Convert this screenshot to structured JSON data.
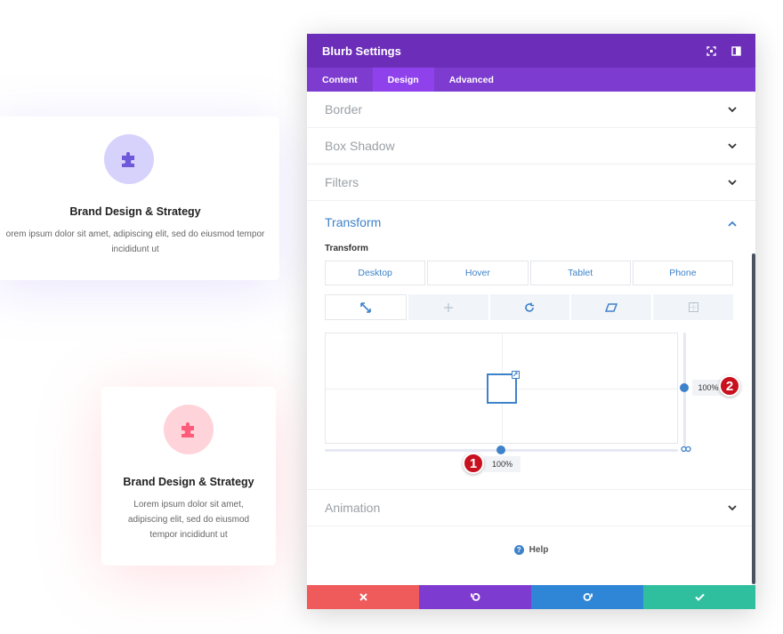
{
  "cards": [
    {
      "title": "Brand Design & Strategy",
      "text": "orem ipsum dolor sit amet, adipiscing elit, sed do eiusmod tempor incididunt ut",
      "icon": "puzzle-icon",
      "accent": "#6f58d9"
    },
    {
      "title": "Brand Design & Strategy",
      "text": "Lorem ipsum dolor sit amet, adipiscing elit, sed do eiusmod tempor incididunt ut",
      "icon": "puzzle-icon",
      "accent": "#ff5c7a"
    }
  ],
  "modal": {
    "title": "Blurb Settings",
    "header_icons": [
      "expand-icon",
      "sidebar-toggle-icon"
    ],
    "tabs": [
      {
        "label": "Content",
        "active": false
      },
      {
        "label": "Design",
        "active": true
      },
      {
        "label": "Advanced",
        "active": false
      }
    ],
    "sections": [
      {
        "label": "Border"
      },
      {
        "label": "Box Shadow"
      },
      {
        "label": "Filters"
      }
    ],
    "transform": {
      "heading": "Transform",
      "sub_label": "Transform",
      "devices": [
        "Desktop",
        "Hover",
        "Tablet",
        "Phone"
      ],
      "tools": [
        "scale-icon",
        "translate-icon",
        "rotate-icon",
        "skew-icon",
        "origin-icon"
      ],
      "active_tool": "scale-icon",
      "scale_x": "100%",
      "scale_y": "100%",
      "markers": [
        "1",
        "2"
      ]
    },
    "after_sections": [
      {
        "label": "Animation"
      }
    ],
    "help_label": "Help",
    "footer": [
      {
        "icon": "close-icon",
        "color": "#ef5a5a"
      },
      {
        "icon": "undo-icon",
        "color": "#7e3bd0"
      },
      {
        "icon": "redo-icon",
        "color": "#2f86d6"
      },
      {
        "icon": "check-icon",
        "color": "#2fbf9f"
      }
    ],
    "colors": {
      "header": "#6c2eb9",
      "tabs": "#7e3bd0",
      "accent": "#3e82c9"
    }
  }
}
